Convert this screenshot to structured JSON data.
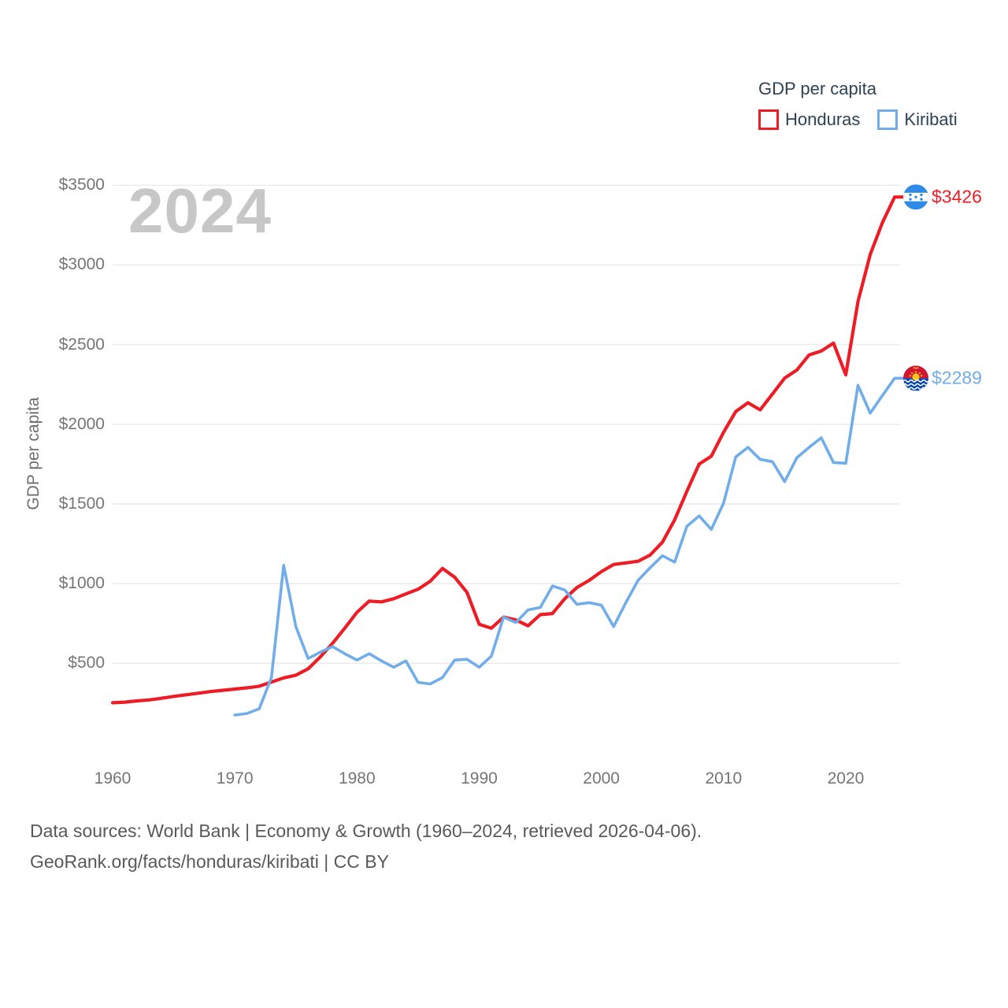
{
  "watermark": "2024",
  "legend": {
    "title": "GDP per capita",
    "items": [
      {
        "label": "Honduras",
        "color": "#ee1c25"
      },
      {
        "label": "Kiribati",
        "color": "#71ade9"
      }
    ]
  },
  "y_axis_title": "GDP per capita",
  "end_labels": [
    {
      "series": "Honduras",
      "value": 3426,
      "value_label": "$3426",
      "flag": "honduras-flag-icon"
    },
    {
      "series": "Kiribati",
      "value": 2289,
      "value_label": "$2289",
      "flag": "kiribati-flag-icon"
    }
  ],
  "footer": {
    "line1": "Data sources: World Bank | Economy & Growth (1960–2024, retrieved 2026-04-06).",
    "line2": "GeoRank.org/facts/honduras/kiribati | CC BY"
  },
  "chart_data": {
    "type": "line",
    "title": "GDP per capita",
    "current_year": "2024",
    "grid": "horizontal-only",
    "legend_position": "top-right",
    "x_axis": {
      "range": [
        1960,
        2024
      ],
      "tick_labels": [
        "1960",
        "1970",
        "1980",
        "1990",
        "2000",
        "2010",
        "2020"
      ],
      "tick_values": [
        1960,
        1970,
        1980,
        1990,
        2000,
        2010,
        2020
      ]
    },
    "y_axis": {
      "label": "GDP per capita",
      "tick_labels": [
        "$500",
        "$1000",
        "$1500",
        "$2000",
        "$2500",
        "$3000",
        "$3500"
      ],
      "tick_values": [
        500,
        1000,
        1500,
        2000,
        2500,
        3000,
        3500
      ],
      "ylim": [
        0,
        3600
      ]
    },
    "series": [
      {
        "name": "Honduras",
        "color": "#ee1c25",
        "start_year": 1960,
        "end_year": 2024,
        "end_value_label": "$3426",
        "values": [
          252,
          256,
          264,
          270,
          280,
          292,
          302,
          312,
          322,
          330,
          338,
          346,
          356,
          382,
          408,
          425,
          465,
          540,
          625,
          720,
          820,
          890,
          885,
          905,
          935,
          965,
          1015,
          1095,
          1040,
          945,
          745,
          720,
          790,
          772,
          735,
          805,
          812,
          905,
          975,
          1020,
          1075,
          1120,
          1130,
          1140,
          1180,
          1260,
          1400,
          1580,
          1750,
          1800,
          1950,
          2080,
          2135,
          2090,
          2190,
          2290,
          2340,
          2435,
          2460,
          2510,
          2310,
          2770,
          3065,
          3265,
          3426
        ]
      },
      {
        "name": "Kiribati",
        "color": "#71ade9",
        "start_year": 1970,
        "end_year": 2024,
        "end_value_label": "$2289",
        "values": [
          175,
          185,
          215,
          410,
          1115,
          730,
          530,
          570,
          605,
          560,
          520,
          560,
          515,
          475,
          515,
          380,
          370,
          410,
          520,
          525,
          475,
          545,
          790,
          755,
          835,
          850,
          985,
          960,
          870,
          880,
          865,
          730,
          880,
          1020,
          1100,
          1175,
          1135,
          1360,
          1425,
          1340,
          1505,
          1795,
          1855,
          1780,
          1765,
          1640,
          1790,
          1855,
          1915,
          1760,
          1755,
          2245,
          2070,
          2180,
          2289
        ]
      }
    ]
  }
}
